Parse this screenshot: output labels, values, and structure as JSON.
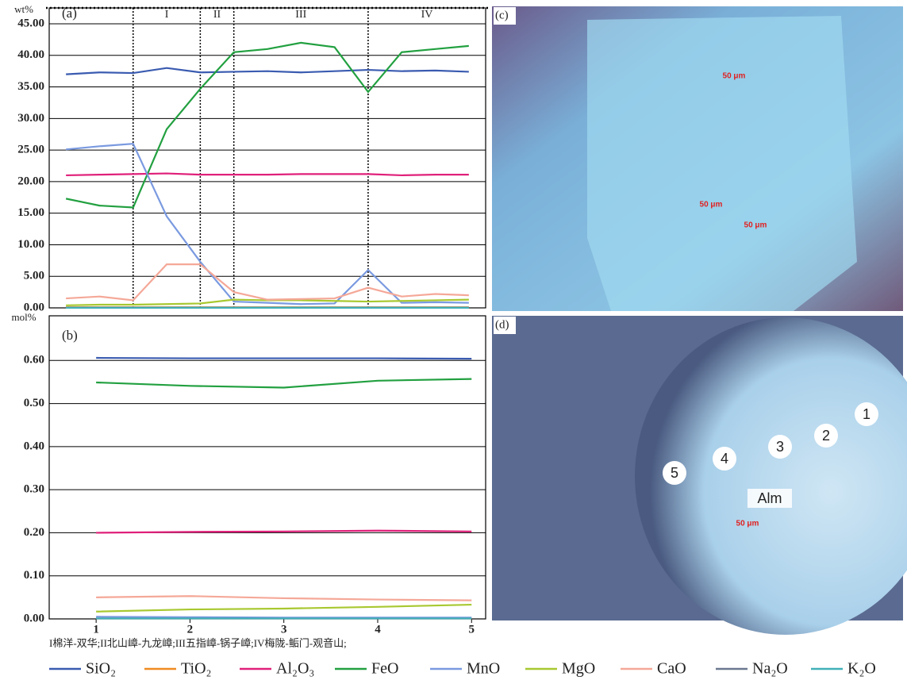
{
  "chart_data": [
    {
      "type": "line",
      "panel_label": "(a)",
      "y_unit": "wt%",
      "categories": [
        null,
        null,
        null,
        null,
        null,
        null,
        null,
        null,
        null,
        null,
        null,
        null,
        null
      ],
      "dividers": [
        2,
        4,
        5,
        9
      ],
      "zones": [
        "I",
        "II",
        "III",
        "IV"
      ],
      "ylim": [
        0,
        45
      ],
      "yticks": [
        {
          "value": 0,
          "label": "0.00"
        },
        {
          "value": 5,
          "label": "5.00"
        },
        {
          "value": 10,
          "label": "10.00"
        },
        {
          "value": 15,
          "label": "15.00"
        },
        {
          "value": 20,
          "label": "20.00"
        },
        {
          "value": 25,
          "label": "25.00"
        },
        {
          "value": 30,
          "label": "30.00"
        },
        {
          "value": 35,
          "label": "35.00"
        },
        {
          "value": 40,
          "label": "40.00"
        },
        {
          "value": 45,
          "label": "45.00"
        }
      ],
      "grid": true,
      "series": [
        {
          "name": "SiO₂",
          "color": "#3a5bb0",
          "values": [
            37.0,
            37.3,
            37.2,
            38.0,
            37.3,
            37.4,
            37.5,
            37.3,
            37.5,
            37.7,
            37.5,
            37.6,
            37.4
          ]
        },
        {
          "name": "TiO₂",
          "color": "#f08a20",
          "values": [
            0.1,
            0.1,
            0.1,
            0.1,
            0.1,
            0.1,
            0.1,
            0.1,
            0.1,
            0.1,
            0.1,
            0.1,
            0.1
          ]
        },
        {
          "name": "Al₂O₃",
          "color": "#e0207a",
          "values": [
            21.0,
            21.1,
            21.2,
            21.3,
            21.1,
            21.1,
            21.1,
            21.2,
            21.2,
            21.2,
            21.0,
            21.1,
            21.1
          ]
        },
        {
          "name": "FeO",
          "color": "#22a040",
          "values": [
            17.3,
            16.2,
            15.9,
            28.3,
            34.7,
            40.5,
            41.0,
            42.0,
            41.3,
            34.2,
            40.5,
            41.0,
            41.5
          ]
        },
        {
          "name": "MnO",
          "color": "#7a9ae0",
          "values": [
            25.1,
            25.6,
            26.0,
            14.5,
            7.3,
            1.0,
            0.8,
            0.6,
            0.7,
            6.0,
            0.8,
            0.9,
            0.8
          ]
        },
        {
          "name": "MgO",
          "color": "#a8c830",
          "values": [
            0.4,
            0.5,
            0.5,
            0.6,
            0.7,
            1.3,
            1.2,
            1.2,
            1.1,
            1.0,
            1.1,
            1.2,
            1.3
          ]
        },
        {
          "name": "CaO",
          "color": "#f5a898",
          "values": [
            1.5,
            1.8,
            1.2,
            6.9,
            6.9,
            2.5,
            1.3,
            1.4,
            1.5,
            3.2,
            1.8,
            2.2,
            2.0
          ]
        },
        {
          "name": "Na₂O",
          "color": "#6a7890",
          "values": [
            0.05,
            0.05,
            0.05,
            0.05,
            0.05,
            0.05,
            0.05,
            0.05,
            0.05,
            0.05,
            0.05,
            0.05,
            0.05
          ]
        },
        {
          "name": "K₂O",
          "color": "#40b0b8",
          "values": [
            0.02,
            0.02,
            0.02,
            0.02,
            0.02,
            0.02,
            0.02,
            0.02,
            0.02,
            0.02,
            0.02,
            0.02,
            0.02
          ]
        }
      ]
    },
    {
      "type": "line",
      "panel_label": "(b)",
      "y_unit": "mol%",
      "x": [
        1,
        2,
        3,
        4,
        5
      ],
      "xlim": [
        0.5,
        5.15
      ],
      "xticks": [
        1,
        2,
        3,
        4,
        5
      ],
      "ylim": [
        0,
        0.7
      ],
      "yticks": [
        {
          "value": 0,
          "label": "0.00"
        },
        {
          "value": 0.1,
          "label": "0.10"
        },
        {
          "value": 0.2,
          "label": "0.20"
        },
        {
          "value": 0.3,
          "label": "0.30"
        },
        {
          "value": 0.4,
          "label": "0.40"
        },
        {
          "value": 0.5,
          "label": "0.50"
        },
        {
          "value": 0.6,
          "label": "0.60"
        }
      ],
      "grid": true,
      "series": [
        {
          "color": "#3a5bb0",
          "values": [
            0.606,
            0.605,
            0.605,
            0.605,
            0.604
          ]
        },
        {
          "color": "#f08a20",
          "values": [
            0.001,
            0.001,
            0.001,
            0.001,
            0.001
          ]
        },
        {
          "color": "#e0207a",
          "values": [
            0.2,
            0.202,
            0.203,
            0.205,
            0.203
          ]
        },
        {
          "color": "#22a040",
          "values": [
            0.549,
            0.541,
            0.537,
            0.553,
            0.557
          ]
        },
        {
          "color": "#7a9ae0",
          "values": [
            0.005,
            0.004,
            0.003,
            0.003,
            0.003
          ]
        },
        {
          "color": "#a8c830",
          "values": [
            0.017,
            0.022,
            0.024,
            0.028,
            0.033
          ]
        },
        {
          "color": "#f5a898",
          "values": [
            0.05,
            0.053,
            0.048,
            0.045,
            0.043
          ]
        },
        {
          "color": "#6a7890",
          "values": [
            0.001,
            0.001,
            0.001,
            0.001,
            0.001
          ]
        },
        {
          "color": "#40b0b8",
          "values": [
            0.001,
            0.001,
            0.001,
            0.001,
            0.001
          ]
        }
      ]
    }
  ],
  "footnote": "I棉洋-双华;II北山嶂-九龙嶂;III五指嶂-锅子嶂;IV梅陇-鲘门-观音山;",
  "photos": [
    {
      "label": "(c)",
      "scale_labels": [
        "50 μm",
        "50 μm",
        "50 μm"
      ]
    },
    {
      "label": "(d)",
      "spots": [
        "1",
        "2",
        "3",
        "4",
        "5"
      ],
      "mineral": "Alm",
      "scale_labels": [
        "50 μm"
      ]
    }
  ]
}
